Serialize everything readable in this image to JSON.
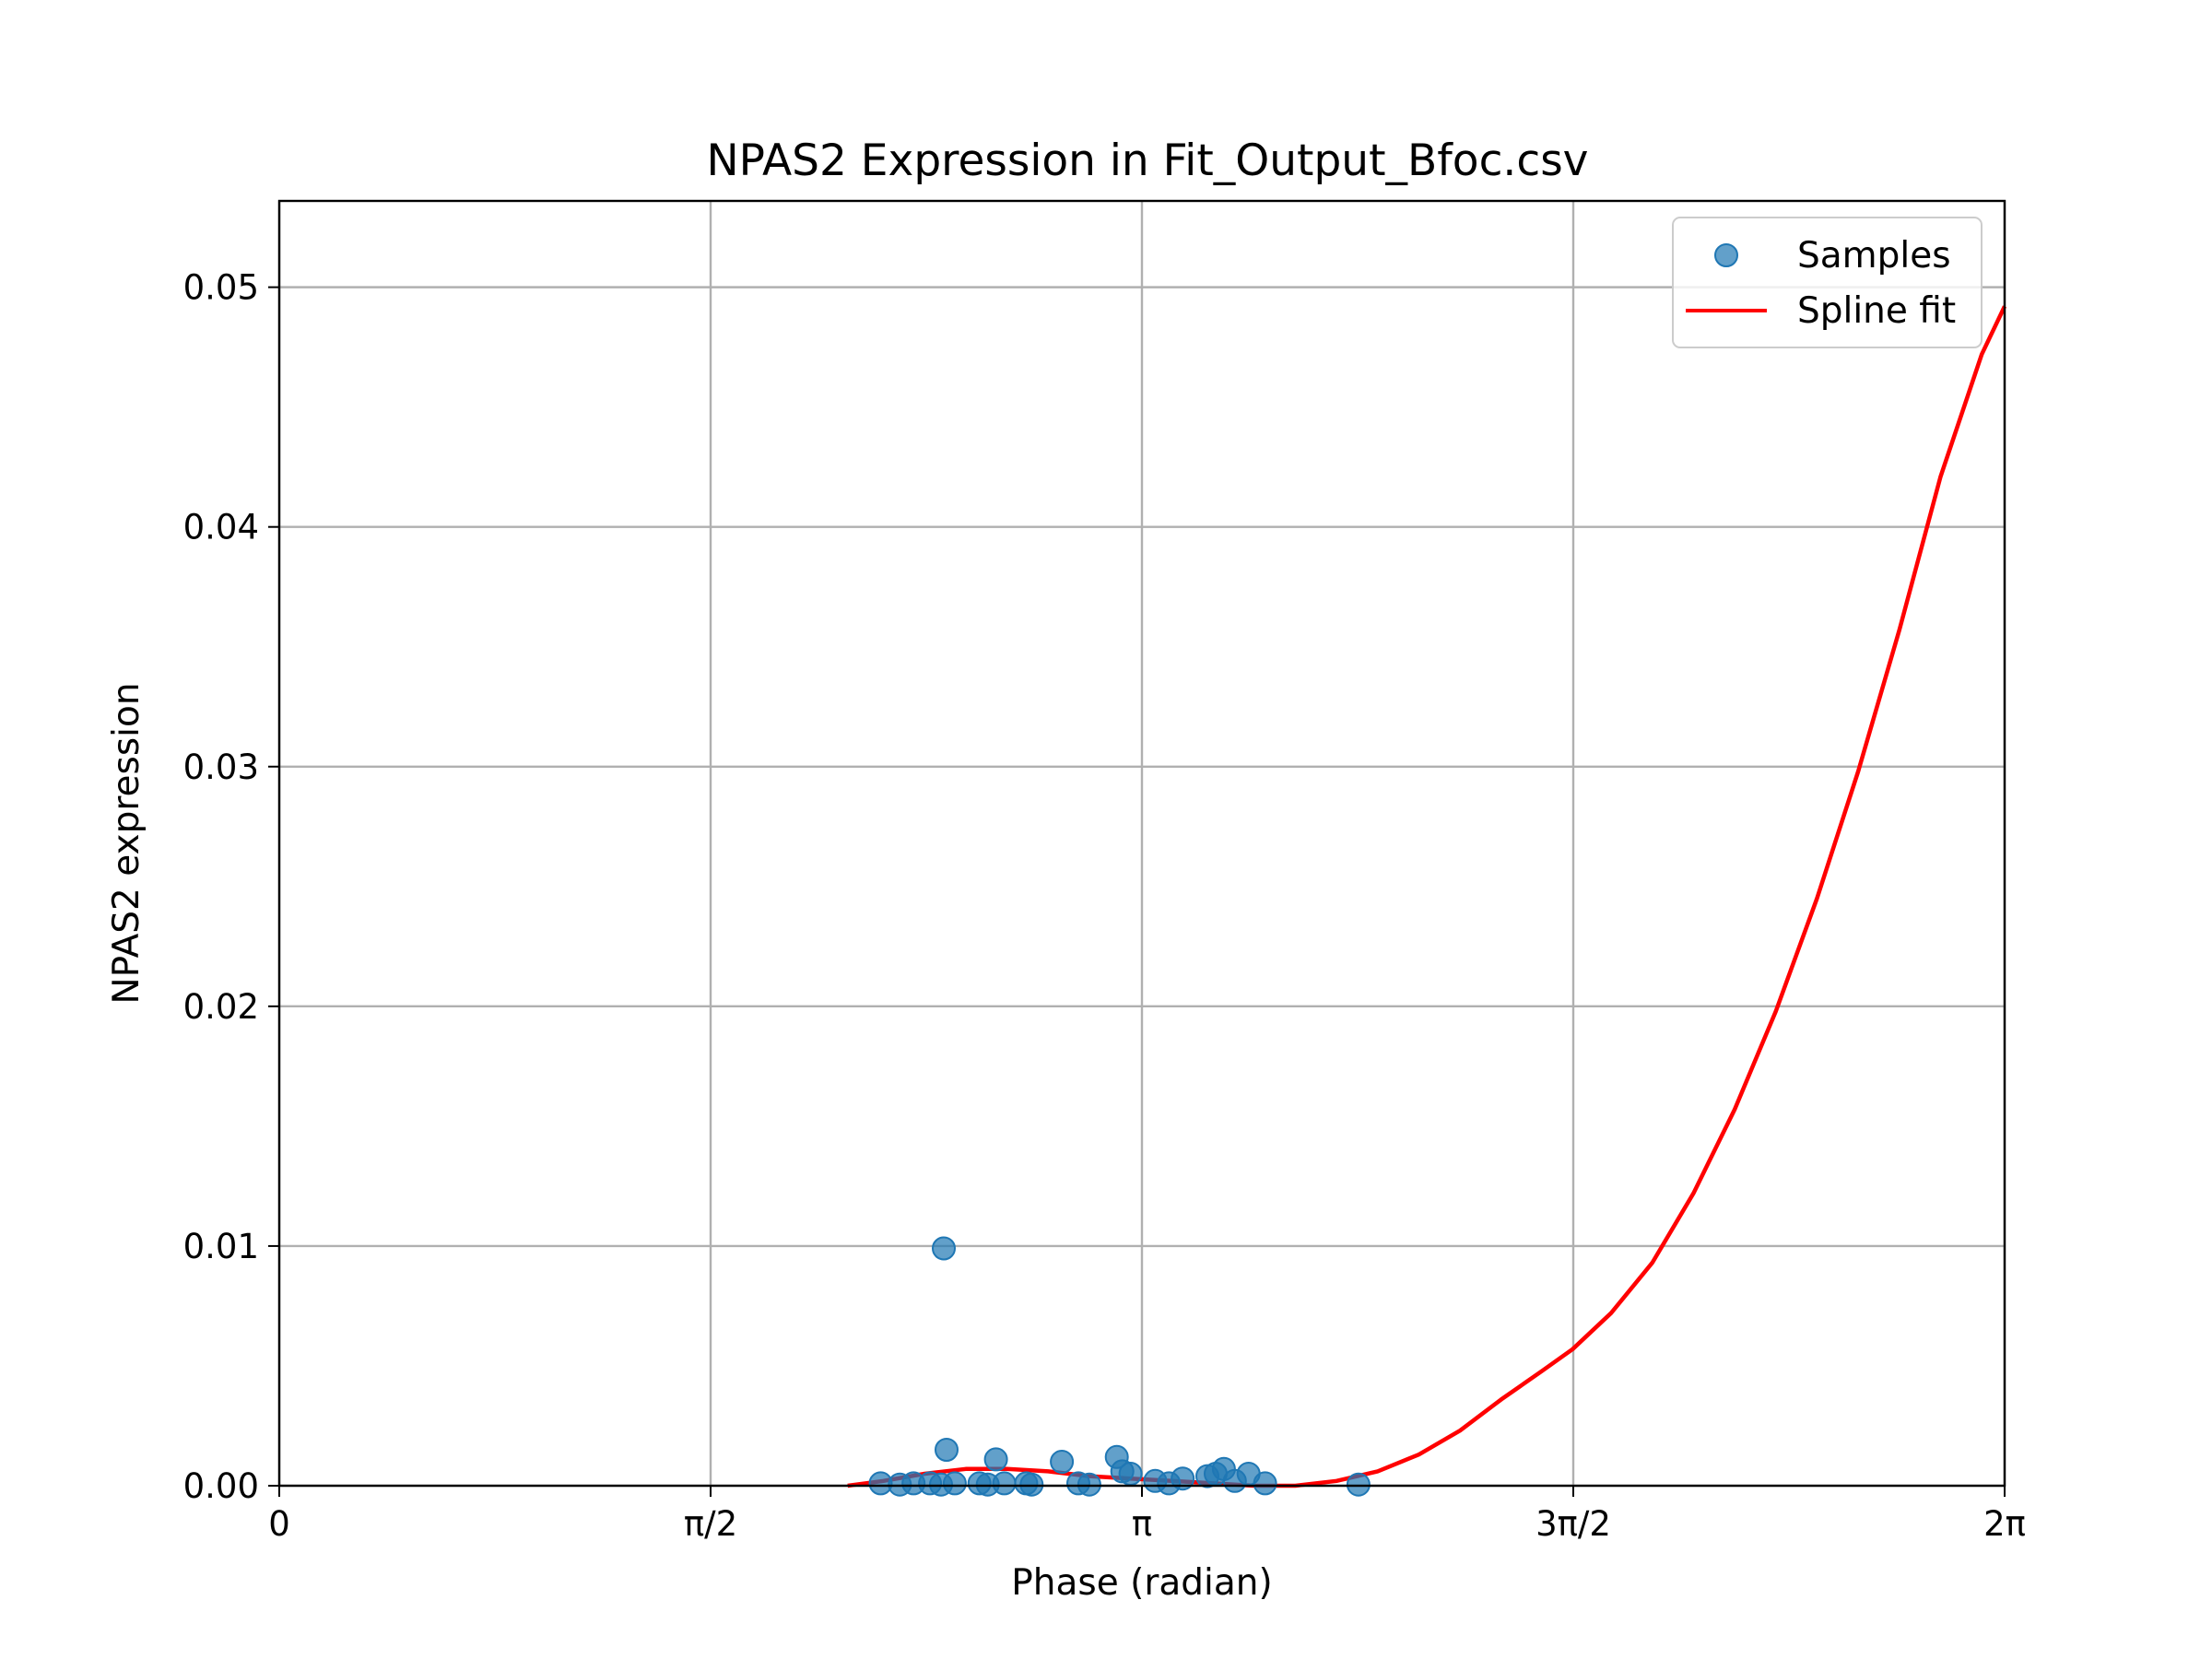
{
  "chart_data": {
    "type": "scatter",
    "title": "NPAS2 Expression in Fit_Output_Bfoc.csv",
    "xlabel": "Phase (radian)",
    "ylabel": "NPAS2 expression",
    "xlim": [
      0,
      6.2832
    ],
    "ylim": [
      0,
      0.0536
    ],
    "x_ticks": [
      {
        "value": 0,
        "label": "0"
      },
      {
        "value": 1.5708,
        "label": "π/2"
      },
      {
        "value": 3.1416,
        "label": "π"
      },
      {
        "value": 4.7124,
        "label": "3π/2"
      },
      {
        "value": 6.2832,
        "label": "2π"
      }
    ],
    "y_ticks": [
      {
        "value": 0.0,
        "label": "0.00"
      },
      {
        "value": 0.01,
        "label": "0.01"
      },
      {
        "value": 0.02,
        "label": "0.02"
      },
      {
        "value": 0.03,
        "label": "0.03"
      },
      {
        "value": 0.04,
        "label": "0.04"
      },
      {
        "value": 0.05,
        "label": "0.05"
      }
    ],
    "grid": true,
    "legend_position": "top-right",
    "series": [
      {
        "name": "Samples",
        "kind": "scatter",
        "color": "#1f77b4",
        "points": [
          [
            2.19,
            0.0001
          ],
          [
            2.26,
            5e-05
          ],
          [
            2.31,
            0.0001
          ],
          [
            2.37,
            0.0001
          ],
          [
            2.41,
            5e-05
          ],
          [
            2.42,
            0.0099
          ],
          [
            2.43,
            0.0015
          ],
          [
            2.46,
            0.0001
          ],
          [
            2.55,
            0.0001
          ],
          [
            2.58,
            5e-05
          ],
          [
            2.61,
            0.0011
          ],
          [
            2.64,
            0.0001
          ],
          [
            2.72,
            0.0001
          ],
          [
            2.74,
            5e-05
          ],
          [
            2.85,
            0.001
          ],
          [
            2.91,
            0.0001
          ],
          [
            2.95,
            5e-05
          ],
          [
            3.05,
            0.0012
          ],
          [
            3.07,
            0.0006
          ],
          [
            3.1,
            0.0005
          ],
          [
            3.19,
            0.0002
          ],
          [
            3.24,
            0.0001
          ],
          [
            3.29,
            0.0003
          ],
          [
            3.38,
            0.0004
          ],
          [
            3.41,
            0.0005
          ],
          [
            3.44,
            0.0007
          ],
          [
            3.48,
            0.0002
          ],
          [
            3.53,
            0.0005
          ],
          [
            3.59,
            0.0001
          ],
          [
            3.93,
            5e-05
          ]
        ]
      },
      {
        "name": "Spline fit",
        "kind": "line",
        "color": "#ff0000",
        "points": [
          [
            2.07,
            0.0
          ],
          [
            2.2,
            0.0002
          ],
          [
            2.35,
            0.0005
          ],
          [
            2.5,
            0.0007
          ],
          [
            2.65,
            0.0007
          ],
          [
            2.8,
            0.0006
          ],
          [
            2.95,
            0.0004
          ],
          [
            3.1,
            0.0003
          ],
          [
            3.25,
            0.0002
          ],
          [
            3.4,
            0.0001
          ],
          [
            3.55,
            0.0
          ],
          [
            3.7,
            0.0
          ],
          [
            3.85,
            0.0002
          ],
          [
            4.0,
            0.0006
          ],
          [
            4.15,
            0.0013
          ],
          [
            4.3,
            0.0023
          ],
          [
            4.45,
            0.0036
          ],
          [
            4.6,
            0.0048
          ],
          [
            4.71,
            0.0057
          ],
          [
            4.85,
            0.0072
          ],
          [
            5.0,
            0.0093
          ],
          [
            5.15,
            0.0122
          ],
          [
            5.3,
            0.0157
          ],
          [
            5.45,
            0.0198
          ],
          [
            5.6,
            0.0245
          ],
          [
            5.75,
            0.0298
          ],
          [
            5.9,
            0.0357
          ],
          [
            6.05,
            0.0421
          ],
          [
            6.2,
            0.0472
          ],
          [
            6.2832,
            0.0492
          ]
        ]
      }
    ]
  }
}
